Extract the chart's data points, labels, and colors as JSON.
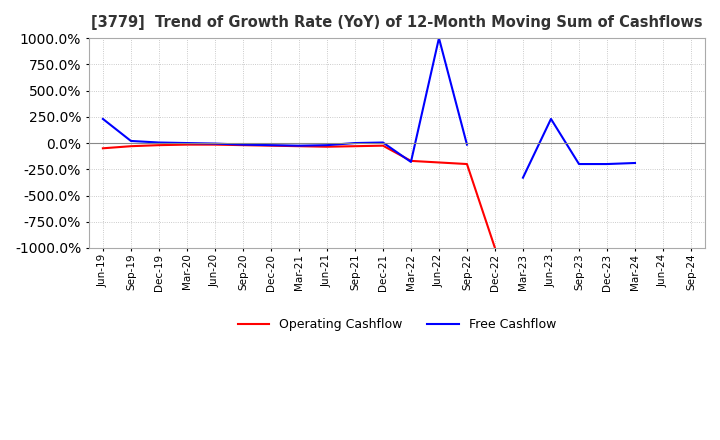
{
  "title": "[3779]  Trend of Growth Rate (YoY) of 12-Month Moving Sum of Cashflows",
  "ylim": [
    -1000,
    1000
  ],
  "yticks": [
    1000.0,
    750.0,
    500.0,
    250.0,
    0.0,
    -250.0,
    -500.0,
    -750.0,
    -1000.0
  ],
  "background_color": "#ffffff",
  "grid_color": "#bbbbbb",
  "operating_color": "#ff0000",
  "free_color": "#0000ff",
  "dates": [
    "Jun-19",
    "Sep-19",
    "Dec-19",
    "Mar-20",
    "Jun-20",
    "Sep-20",
    "Dec-20",
    "Mar-21",
    "Jun-21",
    "Sep-21",
    "Dec-21",
    "Mar-22",
    "Jun-22",
    "Sep-22",
    "Dec-22",
    "Mar-23",
    "Jun-23",
    "Sep-23",
    "Dec-23",
    "Mar-24",
    "Jun-24",
    "Sep-24"
  ],
  "operating_cashflow": [
    -50,
    -30,
    -20,
    -15,
    -15,
    -20,
    -25,
    -30,
    -35,
    -30,
    -25,
    -170,
    -185,
    -200,
    -1000,
    null,
    null,
    null,
    null,
    null,
    null,
    null
  ],
  "free_cashflow": [
    230,
    20,
    5,
    0,
    -5,
    -15,
    -20,
    -25,
    -20,
    0,
    5,
    -180,
    1000,
    -15,
    null,
    -330,
    230,
    -200,
    -200,
    -190,
    null,
    null
  ]
}
